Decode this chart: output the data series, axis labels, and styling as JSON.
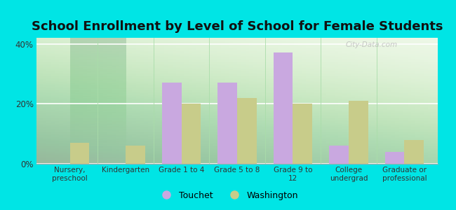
{
  "title": "School Enrollment by Level of School for Female Students",
  "categories": [
    "Nursery,\npreschool",
    "Kindergarten",
    "Grade 1 to 4",
    "Grade 5 to 8",
    "Grade 9 to\n12",
    "College\nundergrad",
    "Graduate or\nprofessional"
  ],
  "touchet": [
    0,
    0,
    27,
    27,
    37,
    6,
    4
  ],
  "washington": [
    7,
    6,
    20,
    22,
    20,
    21,
    8
  ],
  "touchet_color": "#c9a8e0",
  "washington_color": "#c8cc8a",
  "background_color": "#00e5e5",
  "ylim": [
    0,
    42
  ],
  "yticks": [
    0,
    20,
    40
  ],
  "ytick_labels": [
    "0%",
    "20%",
    "40%"
  ],
  "bar_width": 0.35,
  "title_fontsize": 13,
  "legend_labels": [
    "Touchet",
    "Washington"
  ],
  "watermark": "City-Data.com"
}
